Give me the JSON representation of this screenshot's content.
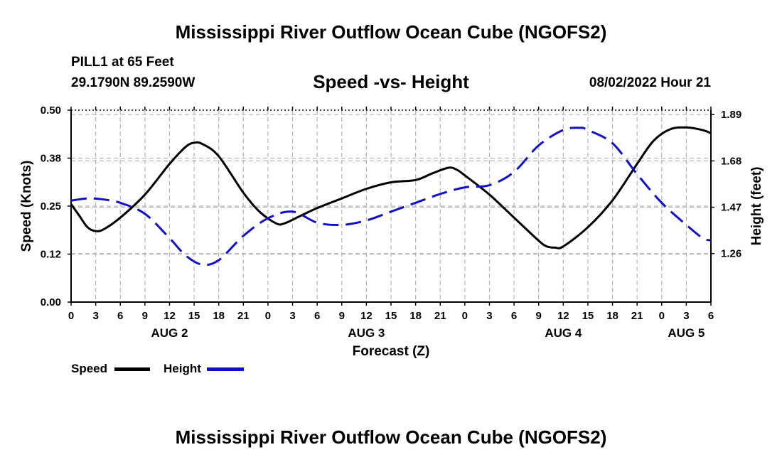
{
  "title": "Mississippi River Outflow Ocean Cube (NGOFS2)",
  "station": "PILL1 at 65 Feet",
  "coords": "29.1790N  89.2590W",
  "subtitle": "Speed -vs- Height",
  "datetime": "08/02/2022 Hour 21",
  "bottom_title": "Mississippi River Outflow Ocean Cube (NGOFS2)",
  "legend": {
    "speed": "Speed",
    "height": "Height"
  },
  "colors": {
    "speed": "#000000",
    "height": "#1010cc",
    "grid": "#b4b4b4"
  },
  "chart_data": {
    "type": "line",
    "title": "Speed -vs- Height",
    "xlabel": "Forecast (Z)",
    "ylabel": "Speed (Knots)",
    "y2label": "Height (feet)",
    "xlim": [
      0,
      78
    ],
    "ylim": [
      0,
      0.5
    ],
    "y2lim": [
      1.04,
      1.91
    ],
    "x_ticks": [
      {
        "x": 0,
        "label": "0"
      },
      {
        "x": 3,
        "label": "3"
      },
      {
        "x": 6,
        "label": "6"
      },
      {
        "x": 9,
        "label": "9"
      },
      {
        "x": 12,
        "label": "12"
      },
      {
        "x": 15,
        "label": "15"
      },
      {
        "x": 18,
        "label": "18"
      },
      {
        "x": 21,
        "label": "21"
      },
      {
        "x": 24,
        "label": "0"
      },
      {
        "x": 27,
        "label": "3"
      },
      {
        "x": 30,
        "label": "6"
      },
      {
        "x": 33,
        "label": "9"
      },
      {
        "x": 36,
        "label": "12"
      },
      {
        "x": 39,
        "label": "15"
      },
      {
        "x": 42,
        "label": "18"
      },
      {
        "x": 45,
        "label": "21"
      },
      {
        "x": 48,
        "label": "0"
      },
      {
        "x": 51,
        "label": "3"
      },
      {
        "x": 54,
        "label": "6"
      },
      {
        "x": 57,
        "label": "9"
      },
      {
        "x": 60,
        "label": "12"
      },
      {
        "x": 63,
        "label": "15"
      },
      {
        "x": 66,
        "label": "18"
      },
      {
        "x": 69,
        "label": "21"
      },
      {
        "x": 72,
        "label": "0"
      },
      {
        "x": 75,
        "label": "3"
      },
      {
        "x": 78,
        "label": "6"
      }
    ],
    "day_labels": [
      {
        "x": 12,
        "label": "AUG 2"
      },
      {
        "x": 36,
        "label": "AUG 3"
      },
      {
        "x": 60,
        "label": "AUG 4"
      },
      {
        "x": 75,
        "label": "AUG 5"
      }
    ],
    "y_ticks": [
      {
        "v": 0.0,
        "label": "0.00"
      },
      {
        "v": 0.125,
        "label": "0.12"
      },
      {
        "v": 0.25,
        "label": "0.25"
      },
      {
        "v": 0.375,
        "label": "0.38"
      },
      {
        "v": 0.5,
        "label": "0.50"
      }
    ],
    "y2_ticks": [
      {
        "v": 1.26,
        "label": "1.26"
      },
      {
        "v": 1.47,
        "label": "1.47"
      },
      {
        "v": 1.68,
        "label": "1.68"
      },
      {
        "v": 1.89,
        "label": "1.89"
      }
    ],
    "series": [
      {
        "name": "Speed",
        "axis": "left",
        "style": "solid",
        "points": [
          [
            0,
            0.255
          ],
          [
            1,
            0.225
          ],
          [
            2,
            0.195
          ],
          [
            3,
            0.185
          ],
          [
            4,
            0.19
          ],
          [
            6,
            0.22
          ],
          [
            9,
            0.28
          ],
          [
            12,
            0.36
          ],
          [
            14,
            0.405
          ],
          [
            15,
            0.415
          ],
          [
            16,
            0.412
          ],
          [
            18,
            0.38
          ],
          [
            21,
            0.285
          ],
          [
            23,
            0.235
          ],
          [
            25,
            0.205
          ],
          [
            26,
            0.205
          ],
          [
            28,
            0.225
          ],
          [
            30,
            0.245
          ],
          [
            33,
            0.27
          ],
          [
            36,
            0.295
          ],
          [
            39,
            0.312
          ],
          [
            42,
            0.318
          ],
          [
            44,
            0.335
          ],
          [
            46,
            0.35
          ],
          [
            47,
            0.345
          ],
          [
            48,
            0.33
          ],
          [
            51,
            0.28
          ],
          [
            54,
            0.22
          ],
          [
            57,
            0.16
          ],
          [
            58,
            0.145
          ],
          [
            59,
            0.142
          ],
          [
            60,
            0.145
          ],
          [
            63,
            0.195
          ],
          [
            66,
            0.265
          ],
          [
            69,
            0.36
          ],
          [
            71,
            0.42
          ],
          [
            73,
            0.45
          ],
          [
            75,
            0.455
          ],
          [
            77,
            0.448
          ],
          [
            78,
            0.44
          ]
        ]
      },
      {
        "name": "Height",
        "axis": "right",
        "style": "dashed",
        "points": [
          [
            0,
            1.5
          ],
          [
            2,
            1.51
          ],
          [
            4,
            1.505
          ],
          [
            6,
            1.49
          ],
          [
            9,
            1.44
          ],
          [
            12,
            1.33
          ],
          [
            14,
            1.25
          ],
          [
            16,
            1.21
          ],
          [
            18,
            1.23
          ],
          [
            21,
            1.34
          ],
          [
            24,
            1.42
          ],
          [
            27,
            1.45
          ],
          [
            30,
            1.4
          ],
          [
            33,
            1.39
          ],
          [
            36,
            1.41
          ],
          [
            39,
            1.45
          ],
          [
            42,
            1.49
          ],
          [
            45,
            1.53
          ],
          [
            48,
            1.56
          ],
          [
            51,
            1.57
          ],
          [
            54,
            1.63
          ],
          [
            57,
            1.75
          ],
          [
            60,
            1.82
          ],
          [
            62,
            1.83
          ],
          [
            63,
            1.82
          ],
          [
            66,
            1.76
          ],
          [
            69,
            1.62
          ],
          [
            72,
            1.49
          ],
          [
            75,
            1.39
          ],
          [
            77,
            1.33
          ],
          [
            78,
            1.32
          ]
        ]
      }
    ]
  }
}
